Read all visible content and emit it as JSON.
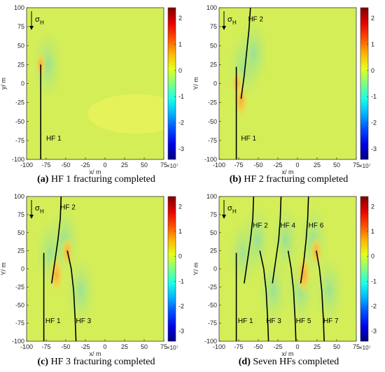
{
  "colors": {
    "field_base": "#d4ee57",
    "field_light": "#eaf35a",
    "field_blue": "#8fe0a0",
    "field_warm": "#f6cf44",
    "fracture": "#000000"
  },
  "common": {
    "xlim": [
      -100,
      75
    ],
    "ylim": [
      -100,
      100
    ],
    "xticks": [
      "-100",
      "-75",
      "-50",
      "-25",
      "0",
      "25",
      "50",
      "75"
    ],
    "yticks": [
      "100",
      "75",
      "50",
      "25",
      "0",
      "-25",
      "-50",
      "-75",
      "-100"
    ],
    "colorbar_ticks": [
      "2",
      "1",
      "0",
      "-1",
      "-2",
      "-3"
    ],
    "colorbar_exponent": "×10⁷",
    "sigma_label": "σ",
    "sigma_sub": "H"
  },
  "chart_data": [
    {
      "type": "heatmap",
      "panel_id": "a",
      "caption_letter": "(a)",
      "caption_text": " HF 1 fracturing completed",
      "xlabel": "x/ m",
      "ylabel": "y/ m",
      "colorbar": true,
      "colorbar_range": [
        -3.4,
        2.4
      ],
      "fractures": [
        {
          "label": "HF 1",
          "label_at": [
            -75,
            -75
          ],
          "points": [
            [
              -82,
              -100
            ],
            [
              -82,
              25
            ]
          ]
        }
      ],
      "hotspots": [
        {
          "x": -82,
          "y": 25,
          "value": 0.6
        }
      ]
    },
    {
      "type": "heatmap",
      "panel_id": "b",
      "caption_letter": "(b)",
      "caption_text": " HF 2 fracturing completed",
      "xlabel": "x/ m",
      "ylabel": "Y/ m",
      "colorbar": true,
      "colorbar_range": [
        -3.4,
        2.4
      ],
      "fractures": [
        {
          "label": "HF 1",
          "label_at": [
            -72,
            -75
          ],
          "points": [
            [
              -78,
              -100
            ],
            [
              -78,
              22
            ]
          ]
        },
        {
          "label": "HF 2",
          "label_at": [
            -63,
            82
          ],
          "points": [
            [
              -72,
              -20
            ],
            [
              -68,
              10
            ],
            [
              -65,
              40
            ],
            [
              -62,
              70
            ],
            [
              -60,
              100
            ]
          ]
        }
      ],
      "hotspots": [
        {
          "x": -72,
          "y": -22,
          "value": 1.2
        },
        {
          "x": -77,
          "y": 0,
          "value": 0.7
        }
      ]
    },
    {
      "type": "heatmap",
      "panel_id": "c",
      "caption_letter": "(c)",
      "caption_text": " HF 3 fracturing completed",
      "xlabel": "x/ m",
      "ylabel": "Y/ m",
      "colorbar": true,
      "colorbar_range": [
        -3.4,
        2.4
      ],
      "fractures": [
        {
          "label": "HF 1",
          "label_at": [
            -76,
            -75
          ],
          "points": [
            [
              -78,
              -100
            ],
            [
              -78,
              22
            ]
          ]
        },
        {
          "label": "HF 2",
          "label_at": [
            -57,
            82
          ],
          "points": [
            [
              -68,
              -20
            ],
            [
              -64,
              10
            ],
            [
              -60,
              40
            ],
            [
              -57,
              70
            ],
            [
              -56,
              100
            ]
          ]
        },
        {
          "label": "HF 3",
          "label_at": [
            -37,
            -75
          ],
          "points": [
            [
              -48,
              25
            ],
            [
              -43,
              0
            ],
            [
              -40,
              -30
            ],
            [
              -38,
              -70
            ],
            [
              -37,
              -100
            ]
          ]
        }
      ],
      "hotspots": [
        {
          "x": -62,
          "y": -8,
          "value": 1.3
        },
        {
          "x": -48,
          "y": 24,
          "value": 0.9
        }
      ]
    },
    {
      "type": "heatmap",
      "panel_id": "d",
      "caption_letter": "(d)",
      "caption_text": " Seven HFs completed",
      "xlabel": "x/ m",
      "ylabel": "Y/ m",
      "colorbar": true,
      "colorbar_range": [
        -3.4,
        2.4
      ],
      "fractures": [
        {
          "label": "HF 1",
          "label_at": [
            -76,
            -75
          ],
          "points": [
            [
              -78,
              -100
            ],
            [
              -78,
              22
            ]
          ]
        },
        {
          "label": "HF 2",
          "label_at": [
            -57,
            57
          ],
          "points": [
            [
              -68,
              -20
            ],
            [
              -64,
              10
            ],
            [
              -60,
              40
            ],
            [
              -57,
              70
            ],
            [
              -56,
              100
            ]
          ]
        },
        {
          "label": "HF 3",
          "label_at": [
            -40,
            -75
          ],
          "points": [
            [
              -48,
              25
            ],
            [
              -43,
              0
            ],
            [
              -40,
              -30
            ],
            [
              -38,
              -70
            ],
            [
              -37,
              -100
            ]
          ]
        },
        {
          "label": "HF 4",
          "label_at": [
            -22,
            57
          ],
          "points": [
            [
              -32,
              -20
            ],
            [
              -28,
              10
            ],
            [
              -24,
              40
            ],
            [
              -22,
              70
            ],
            [
              -21,
              100
            ]
          ]
        },
        {
          "label": "HF 5",
          "label_at": [
            -2,
            -75
          ],
          "points": [
            [
              -12,
              25
            ],
            [
              -8,
              0
            ],
            [
              -5,
              -30
            ],
            [
              -3,
              -70
            ],
            [
              -2,
              -100
            ]
          ]
        },
        {
          "label": "HF 6",
          "label_at": [
            14,
            57
          ],
          "points": [
            [
              4,
              -20
            ],
            [
              8,
              10
            ],
            [
              11,
              40
            ],
            [
              13,
              70
            ],
            [
              14,
              100
            ]
          ]
        },
        {
          "label": "HF 7",
          "label_at": [
            33,
            -75
          ],
          "points": [
            [
              24,
              25
            ],
            [
              28,
              0
            ],
            [
              31,
              -30
            ],
            [
              33,
              -70
            ],
            [
              34,
              -100
            ]
          ]
        }
      ],
      "hotspots": [
        {
          "x": 8,
          "y": -8,
          "value": 1.4
        },
        {
          "x": 24,
          "y": 24,
          "value": 0.9
        }
      ]
    }
  ]
}
